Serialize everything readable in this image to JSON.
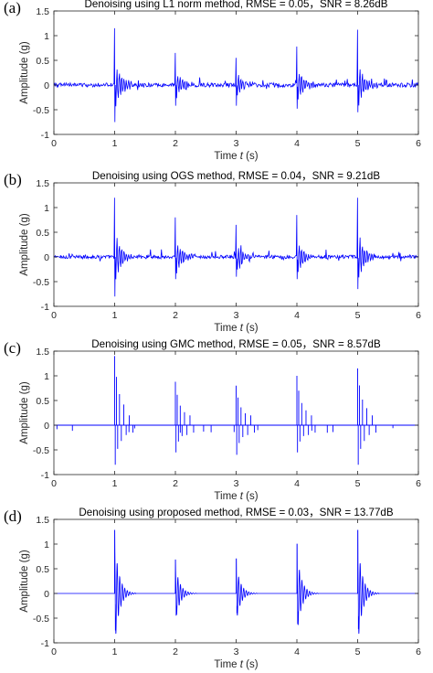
{
  "chart_data": [
    {
      "type": "line",
      "panel_label": "(a)",
      "title": "Denoising using L1 norm method, RMSE = 0.05，SNR = 8.26dB",
      "xlabel_main": "Time",
      "xlabel_var": "t",
      "xlabel_unit": "(s)",
      "ylabel": "Amplitude (g)",
      "xlim": [
        0,
        6
      ],
      "ylim": [
        -1,
        1.5
      ],
      "xticks": [
        "0",
        "1",
        "2",
        "3",
        "4",
        "5",
        "6"
      ],
      "yticks": [
        "-1",
        "-0.5",
        "0",
        "0.5",
        "1",
        "1.5"
      ],
      "grid": false,
      "series_color": "#0000ff",
      "style": "noisy",
      "impulse_times": [
        1,
        2,
        3,
        4,
        5
      ],
      "peaks": [
        1.15,
        0.65,
        0.55,
        0.78,
        1.12
      ],
      "troughs": [
        -0.75,
        -0.42,
        -0.42,
        -0.48,
        -0.55
      ],
      "noise_level": 0.07
    },
    {
      "type": "line",
      "panel_label": "(b)",
      "title": "Denoising using OGS method, RMSE = 0.04，SNR = 9.21dB",
      "xlabel_main": "Time",
      "xlabel_var": "t",
      "xlabel_unit": "(s)",
      "ylabel": "Amplitude (g)",
      "xlim": [
        0,
        6
      ],
      "ylim": [
        -1,
        1.5
      ],
      "xticks": [
        "0",
        "1",
        "2",
        "3",
        "4",
        "5",
        "6"
      ],
      "yticks": [
        "-1",
        "-0.5",
        "0",
        "0.5",
        "1",
        "1.5"
      ],
      "grid": false,
      "series_color": "#0000ff",
      "style": "noisy",
      "impulse_times": [
        1,
        2,
        3,
        4,
        5
      ],
      "peaks": [
        1.2,
        0.8,
        0.65,
        0.85,
        1.2
      ],
      "troughs": [
        -0.8,
        -0.45,
        -0.4,
        -0.45,
        -0.65
      ],
      "noise_level": 0.06
    },
    {
      "type": "line",
      "panel_label": "(c)",
      "title": "Denoising using GMC method, RMSE = 0.05，SNR = 8.57dB",
      "xlabel_main": "Time",
      "xlabel_var": "t",
      "xlabel_unit": "(s)",
      "ylabel": "Amplitude (g)",
      "xlim": [
        0,
        6
      ],
      "ylim": [
        -1,
        1.5
      ],
      "xticks": [
        "0",
        "1",
        "2",
        "3",
        "4",
        "5",
        "6"
      ],
      "yticks": [
        "-1",
        "-0.5",
        "0",
        "0.5",
        "1",
        "1.5"
      ],
      "grid": false,
      "series_color": "#0000ff",
      "style": "sparse",
      "impulse_times": [
        1,
        2,
        3,
        4,
        5
      ],
      "peaks": [
        1.4,
        0.88,
        0.8,
        1.0,
        1.15
      ],
      "troughs": [
        -0.8,
        -0.55,
        -0.6,
        -0.55,
        -0.8
      ],
      "noise_level": 0.15
    },
    {
      "type": "line",
      "panel_label": "(d)",
      "title": "Denoising using proposed method, RMSE = 0.03，SNR = 13.77dB",
      "xlabel_main": "Time",
      "xlabel_var": "t",
      "xlabel_unit": "(s)",
      "ylabel": "Amplitude (g)",
      "xlim": [
        0,
        6
      ],
      "ylim": [
        -1,
        1.5
      ],
      "xticks": [
        "0",
        "1",
        "2",
        "3",
        "4",
        "5",
        "6"
      ],
      "yticks": [
        "-1",
        "-0.5",
        "0",
        "0.5",
        "1",
        "1.5"
      ],
      "grid": false,
      "series_color": "#0000ff",
      "style": "clean",
      "impulse_times": [
        1,
        2,
        3,
        4,
        5
      ],
      "peaks": [
        1.28,
        0.68,
        0.7,
        1.0,
        1.28
      ],
      "troughs": [
        -0.75,
        -0.45,
        -0.4,
        -0.62,
        -0.72
      ],
      "noise_level": 0.0
    }
  ]
}
